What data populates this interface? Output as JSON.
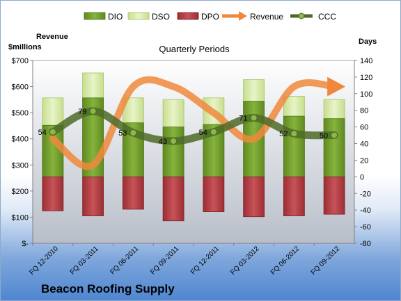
{
  "chart_data": {
    "type": "bar",
    "title": "Quarterly Periods",
    "company": "Beacon Roofing Supply",
    "left_axis_label_line1": "Revenue",
    "left_axis_label_line2": "$millions",
    "right_axis_label": "Days",
    "left_axis": {
      "min": 0,
      "max": 700,
      "step": 100,
      "tick_labels": [
        "$-",
        "$100",
        "$200",
        "$300",
        "$400",
        "$500",
        "$600",
        "$700"
      ]
    },
    "right_axis": {
      "min": -80,
      "max": 140,
      "step": 20,
      "tick_labels": [
        "-80",
        "-60",
        "-40",
        "-20",
        "0",
        "20",
        "40",
        "60",
        "80",
        "100",
        "120",
        "140"
      ]
    },
    "categories": [
      "FQ 12-2010",
      "FQ 03-2011",
      "FQ 06-2011",
      "FQ 09-2011",
      "FQ 12-2011",
      "FQ 03-2012",
      "FQ 06-2012",
      "FQ 09-2012"
    ],
    "legend": [
      "DIO",
      "DSO",
      "DPO",
      "Revenue",
      "CCC"
    ],
    "legend_placement": "top",
    "grid": false,
    "series": [
      {
        "name": "DIO",
        "values": [
          62,
          95,
          65,
          60,
          63,
          91,
          73,
          70
        ],
        "color": "#77a030",
        "axis": "right"
      },
      {
        "name": "DSO",
        "values": [
          95,
          125,
          95,
          93,
          95,
          117,
          97,
          93
        ],
        "color": "#d8eaae",
        "axis": "right"
      },
      {
        "name": "DPO",
        "values": [
          -41,
          -47,
          -39,
          -53,
          -42,
          -48,
          -47,
          -45
        ],
        "color": "#b94247",
        "axis": "right"
      },
      {
        "name": "Revenue",
        "values": [
          400,
          300,
          600,
          600,
          500,
          400,
          600,
          600
        ],
        "color": "#f0883c",
        "axis": "left"
      },
      {
        "name": "CCC",
        "values": [
          54,
          79,
          53,
          43,
          54,
          71,
          52,
          50
        ],
        "color": "#4d6b28",
        "axis": "right",
        "labels": [
          "54",
          "79",
          "53",
          "43",
          "54",
          "71",
          "52",
          "50"
        ]
      }
    ]
  }
}
